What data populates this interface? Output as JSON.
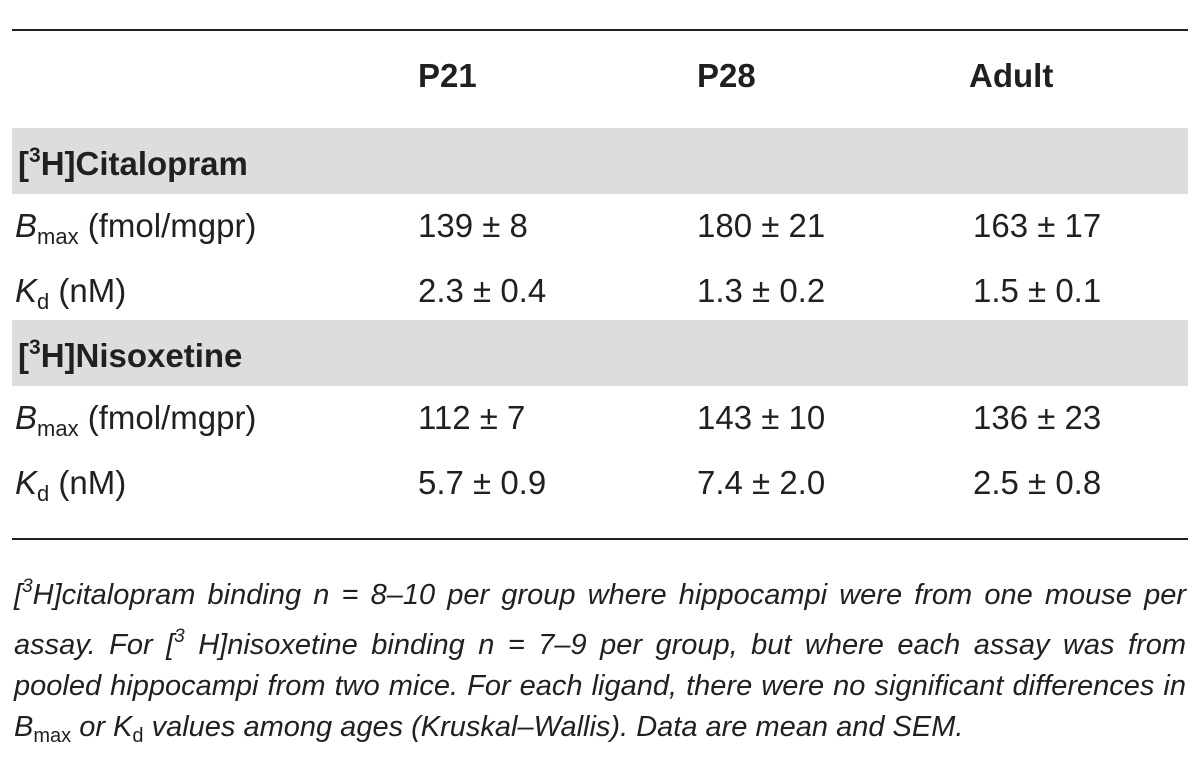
{
  "columns": [
    "P21",
    "P28",
    "Adult"
  ],
  "sections": [
    {
      "label_prefix": "[",
      "label_sup": "3",
      "label_rest": "H]Citalopram",
      "rows": [
        {
          "param": "B",
          "param_sub": "max",
          "unit": " (fmol/mgpr)",
          "values": [
            "139 ± 8",
            "180 ± 21",
            "163 ± 17"
          ]
        },
        {
          "param": "K",
          "param_sub": "d",
          "unit": " (nM)",
          "values": [
            "2.3 ± 0.4",
            "1.3 ± 0.2",
            "1.5 ± 0.1"
          ]
        }
      ]
    },
    {
      "label_prefix": "[",
      "label_sup": "3",
      "label_rest": "H]Nisoxetine",
      "rows": [
        {
          "param": "B",
          "param_sub": "max",
          "unit": " (fmol/mgpr)",
          "values": [
            "112 ± 7",
            "143 ± 10",
            "136 ± 23"
          ]
        },
        {
          "param": "K",
          "param_sub": "d",
          "unit": " (nM)",
          "values": [
            "5.7 ± 0.9",
            "7.4 ± 2.0",
            "2.5 ± 0.8"
          ]
        }
      ]
    }
  ],
  "footnote": {
    "p1": "[",
    "sup1": "3",
    "p2": "H]citalopram binding n = 8–10 per group where hippocampi were from one mouse per assay. For [",
    "sup2": "3",
    "p3": " H]nisoxetine binding n = 7–9 per group, but where each assay was from pooled hippocampi from two mice. For each ligand, there were no significant differences in B",
    "sub1": "max",
    "p4": " or K",
    "sub2": "d",
    "p5": " values among ages (Kruskal–Wallis). Data are mean and SEM."
  }
}
